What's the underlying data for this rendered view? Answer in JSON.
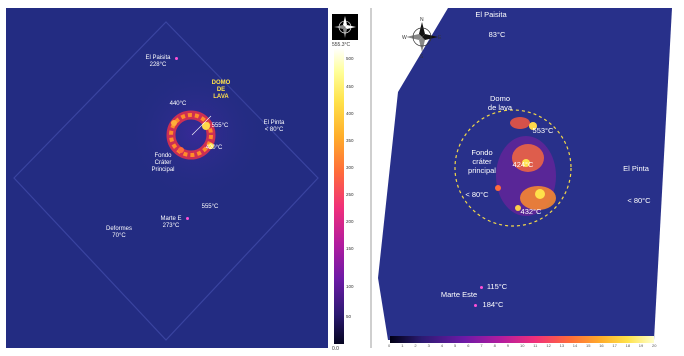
{
  "left_image": {
    "labels": {
      "el_paisita": "El Paisita\n228°C",
      "domo": "DOMO\nDE\nLAVA",
      "t440": "440°C",
      "t555a": "555°C",
      "t420": "420°C",
      "el_pinta": "El Pinta\n< 80°C",
      "fondo": "Fondo\nCráter\nPrincipal",
      "t555b": "555°C",
      "marte": "Marte E\n273°C",
      "deformes": "Deformes\n70°C"
    }
  },
  "left_scale": {
    "top": "555.3°C",
    "ticks": [
      "500",
      "450",
      "400",
      "350",
      "300",
      "250",
      "200",
      "150",
      "100",
      "50"
    ],
    "bottom": "0.0"
  },
  "right_image": {
    "labels": {
      "el_paisita": "El Paisita",
      "t83": "83°C",
      "domo": "Domo\nde lava",
      "t553": "553°C",
      "fondo": "Fondo\ncráter\nprincipal",
      "t424": "424°C",
      "t80": "< 80°C",
      "t432": "432°C",
      "el_pinta": "El Pinta",
      "el_pinta_t": "< 80°C",
      "marte": "Marte Este",
      "t115": "115°C",
      "t184": "184°C"
    }
  },
  "right_scale": {
    "ticks": [
      "0",
      "1",
      "2",
      "3",
      "4",
      "5",
      "6",
      "7",
      "8",
      "9",
      "10",
      "11",
      "12",
      "13",
      "14",
      "15",
      "16",
      "17",
      "18",
      "19",
      "20"
    ]
  },
  "compass": {
    "n": "N",
    "s": "S",
    "e": "E",
    "w": "W"
  }
}
